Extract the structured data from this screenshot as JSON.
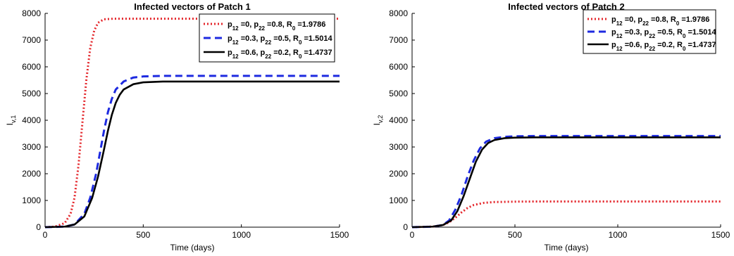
{
  "chart_data": [
    {
      "type": "line",
      "title": "Infected vectors of Patch 1",
      "xlabel": "Time (days)",
      "ylabel_base": "I",
      "ylabel_sub": "v,1",
      "xlim": [
        0,
        1500
      ],
      "ylim": [
        0,
        8000
      ],
      "xticks": [
        0,
        500,
        1000,
        1500
      ],
      "yticks": [
        0,
        1000,
        2000,
        3000,
        4000,
        5000,
        6000,
        7000,
        8000
      ],
      "grid": false,
      "legend_position": "top-right",
      "series": [
        {
          "label_runs": [
            [
              "p",
              ""
            ],
            [
              "12",
              "sub"
            ],
            [
              " =0, p",
              ""
            ],
            [
              "22",
              "sub"
            ],
            [
              " =0.8, R",
              ""
            ],
            [
              "0",
              "sub"
            ],
            [
              " =1.9786",
              ""
            ]
          ],
          "color": "#e4262b",
          "style": "dotted",
          "x": [
            0,
            50,
            100,
            130,
            150,
            170,
            190,
            210,
            230,
            250,
            270,
            300,
            350,
            400,
            1500
          ],
          "y": [
            0,
            20,
            150,
            500,
            1100,
            2300,
            3900,
            5500,
            6700,
            7350,
            7650,
            7780,
            7800,
            7800,
            7800
          ]
        },
        {
          "label_runs": [
            [
              "p",
              ""
            ],
            [
              "12",
              "sub"
            ],
            [
              " =0.3, p",
              ""
            ],
            [
              "22",
              "sub"
            ],
            [
              " =0.5, R",
              ""
            ],
            [
              "0",
              "sub"
            ],
            [
              " =1.5014",
              ""
            ]
          ],
          "color": "#1d2ae0",
          "style": "dashed",
          "x": [
            0,
            100,
            150,
            200,
            230,
            260,
            280,
            300,
            320,
            340,
            360,
            400,
            450,
            500,
            600,
            1500
          ],
          "y": [
            0,
            20,
            100,
            500,
            1100,
            2000,
            2800,
            3600,
            4300,
            4800,
            5150,
            5450,
            5600,
            5640,
            5660,
            5660
          ]
        },
        {
          "label_runs": [
            [
              "p",
              ""
            ],
            [
              "12",
              "sub"
            ],
            [
              " =0.6, p",
              ""
            ],
            [
              "22",
              "sub"
            ],
            [
              " =0.2, R",
              ""
            ],
            [
              "0",
              "sub"
            ],
            [
              " =1.4737",
              ""
            ]
          ],
          "color": "#000000",
          "style": "solid",
          "x": [
            0,
            100,
            150,
            200,
            240,
            270,
            300,
            320,
            340,
            360,
            380,
            400,
            450,
            500,
            600,
            1500
          ],
          "y": [
            0,
            20,
            100,
            400,
            1100,
            1900,
            2900,
            3600,
            4200,
            4650,
            4950,
            5150,
            5350,
            5420,
            5450,
            5450
          ]
        }
      ]
    },
    {
      "type": "line",
      "title": "Infected vectors of Patch 2",
      "xlabel": "Time (days)",
      "ylabel_base": "I",
      "ylabel_sub": "v,2",
      "xlim": [
        0,
        1500
      ],
      "ylim": [
        0,
        8000
      ],
      "xticks": [
        0,
        500,
        1000,
        1500
      ],
      "yticks": [
        0,
        1000,
        2000,
        3000,
        4000,
        5000,
        6000,
        7000,
        8000
      ],
      "grid": false,
      "legend_position": "top-right",
      "series": [
        {
          "label_runs": [
            [
              "p",
              ""
            ],
            [
              "12",
              "sub"
            ],
            [
              " =0, p",
              ""
            ],
            [
              "22",
              "sub"
            ],
            [
              " =0.8, R",
              ""
            ],
            [
              "0",
              "sub"
            ],
            [
              " =1.9786",
              ""
            ]
          ],
          "color": "#e4262b",
          "style": "dotted",
          "x": [
            0,
            100,
            150,
            180,
            210,
            240,
            270,
            300,
            350,
            400,
            500,
            600,
            1500
          ],
          "y": [
            0,
            20,
            80,
            180,
            350,
            550,
            720,
            830,
            910,
            940,
            955,
            960,
            960
          ]
        },
        {
          "label_runs": [
            [
              "p",
              ""
            ],
            [
              "12",
              "sub"
            ],
            [
              " =0.3, p",
              ""
            ],
            [
              "22",
              "sub"
            ],
            [
              " =0.5, R",
              ""
            ],
            [
              "0",
              "sub"
            ],
            [
              " =1.5014",
              ""
            ]
          ],
          "color": "#1d2ae0",
          "style": "dashed",
          "x": [
            0,
            100,
            150,
            180,
            210,
            240,
            270,
            300,
            330,
            360,
            400,
            450,
            500,
            600,
            1500
          ],
          "y": [
            0,
            20,
            80,
            250,
            650,
            1200,
            1900,
            2500,
            2950,
            3200,
            3330,
            3380,
            3400,
            3410,
            3410
          ]
        },
        {
          "label_runs": [
            [
              "p",
              ""
            ],
            [
              "12",
              "sub"
            ],
            [
              " =0.6, p",
              ""
            ],
            [
              "22",
              "sub"
            ],
            [
              " =0.2, R",
              ""
            ],
            [
              "0",
              "sub"
            ],
            [
              " =1.4737",
              ""
            ]
          ],
          "color": "#000000",
          "style": "solid",
          "x": [
            0,
            100,
            150,
            190,
            220,
            250,
            280,
            310,
            340,
            370,
            400,
            450,
            500,
            600,
            1500
          ],
          "y": [
            0,
            20,
            80,
            250,
            600,
            1150,
            1800,
            2450,
            2900,
            3150,
            3260,
            3330,
            3350,
            3360,
            3360
          ]
        }
      ]
    }
  ]
}
